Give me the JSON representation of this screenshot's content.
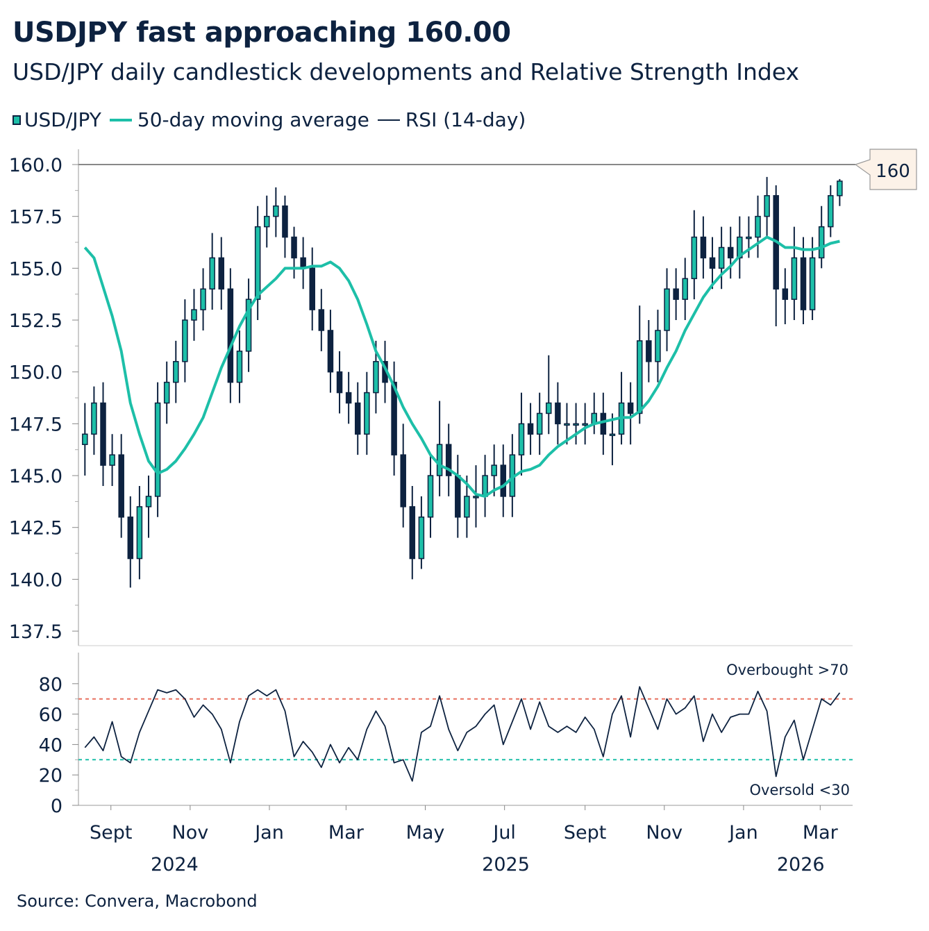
{
  "title": "USDJPY fast approaching 160.00",
  "subtitle": "USD/JPY daily candlestick developments and Relative Strength Index",
  "source": "Source: Convera, Macrobond",
  "colors": {
    "candle": "#0d2240",
    "moving_average": "#1dbfa8",
    "rsi": "#0d2240",
    "overbought": "#e8705f",
    "oversold": "#1dbfa8",
    "callout_fill": "#fcf2e8",
    "reference_line": "#888888"
  },
  "chart_data": [
    {
      "type": "candlestick",
      "legend": {
        "placement": "top-left",
        "items": [
          "USD/JPY",
          "50-day moving average",
          "RSI (14-day)"
        ]
      },
      "yticks": [
        "137.5",
        "140.0",
        "142.5",
        "145.0",
        "147.5",
        "150.0",
        "152.5",
        "155.0",
        "157.5",
        "160.0"
      ],
      "ylim": [
        137.5,
        160.8
      ],
      "grid": false,
      "reference_line": {
        "value": 160,
        "label": "160"
      },
      "candles": {
        "name": "USD/JPY",
        "start_date": "2024-08-12",
        "frequency": "weekly",
        "open": [
          146.5,
          147,
          148.5,
          145.5,
          146,
          143,
          141,
          143.5,
          144,
          148.5,
          149.5,
          150.5,
          152.5,
          153,
          154,
          155.5,
          154,
          149.5,
          151,
          153.5,
          157,
          157.5,
          158,
          156.5,
          155.5,
          155,
          153,
          152,
          150,
          149,
          148.5,
          147,
          149,
          150.5,
          149.5,
          146,
          143.5,
          141,
          143,
          145,
          146.5,
          145,
          143,
          144,
          144,
          145,
          145.5,
          144,
          146,
          147.5,
          147,
          148,
          148.5,
          147.5,
          147.5,
          147.5,
          147.5,
          148,
          147,
          147,
          148.5,
          148,
          151.5,
          150.5,
          152,
          154,
          153.5,
          154.5,
          156.5,
          155.5,
          155,
          156,
          155.5,
          156.5,
          156.5,
          157.5,
          158.5,
          154,
          153.5,
          155.5,
          153,
          155.5,
          157,
          158.5
        ],
        "high": [
          148.5,
          149.3,
          149.5,
          147,
          147,
          144,
          144.5,
          145,
          149.5,
          150.5,
          151.5,
          153.5,
          154,
          155,
          156.7,
          156.5,
          155,
          152,
          154.5,
          158,
          158.5,
          158.9,
          158.5,
          157,
          156.5,
          156,
          154,
          153,
          151,
          150,
          149.5,
          150,
          151.5,
          151.5,
          150.5,
          147.5,
          144.5,
          144,
          146,
          148.6,
          147.5,
          146,
          145,
          145.5,
          146,
          146.5,
          146.5,
          147,
          149,
          148.5,
          149,
          150.8,
          149.5,
          148.5,
          148.5,
          148.5,
          149,
          149,
          148,
          150,
          149.5,
          153.2,
          152.5,
          153,
          155,
          155,
          155.5,
          157.8,
          157.5,
          156.5,
          157,
          157,
          157.5,
          157.5,
          158.5,
          159.4,
          159,
          155,
          157,
          156.5,
          156.5,
          158,
          159,
          159.3
        ],
        "low": [
          145,
          146,
          144.5,
          144.5,
          142,
          139.6,
          140,
          142,
          143,
          147.5,
          148.5,
          149.5,
          151.5,
          152,
          153,
          153,
          148.5,
          148.5,
          150,
          152.5,
          156,
          156.5,
          155.5,
          154.5,
          154,
          152,
          151,
          149,
          148,
          147.5,
          146,
          146,
          148,
          148.5,
          145,
          142.5,
          140,
          140.5,
          142,
          144,
          144,
          142,
          142,
          142.5,
          143,
          144,
          143,
          143,
          145,
          146,
          146,
          147,
          146.5,
          146.5,
          146.5,
          146.5,
          147,
          146,
          145.5,
          146.5,
          146.5,
          147.5,
          149.5,
          149.5,
          151,
          152.5,
          152.5,
          153.5,
          154.5,
          154,
          154,
          154.5,
          154.5,
          155.5,
          155.5,
          156.5,
          152.2,
          152.3,
          152.5,
          152.3,
          152.5,
          155,
          156.5,
          158
        ],
        "close": [
          147,
          148.5,
          145.5,
          146,
          143,
          141,
          143.5,
          144,
          148.5,
          149.5,
          150.5,
          152.5,
          153,
          154,
          155.5,
          154,
          149.5,
          151,
          153.5,
          157,
          157.5,
          158,
          156.5,
          155.5,
          155,
          153,
          152,
          150,
          149,
          148.5,
          147,
          149,
          150.5,
          149.5,
          146,
          143.5,
          141,
          143,
          145,
          146.5,
          145,
          143,
          144,
          144,
          145,
          145.5,
          144,
          146,
          147.5,
          147,
          148,
          148.5,
          147.5,
          147.5,
          147.5,
          147.5,
          148,
          147,
          147,
          148.5,
          148,
          151.5,
          150.5,
          152,
          154,
          153.5,
          154.5,
          156.5,
          155.5,
          155,
          156,
          155.5,
          156.5,
          156.5,
          157.5,
          158.5,
          154,
          153.5,
          155.5,
          153,
          155.5,
          157,
          158.5,
          159.2
        ]
      },
      "moving_average": {
        "name": "50-day moving average",
        "values": [
          156,
          155.5,
          154.1,
          152.7,
          151,
          148.5,
          147,
          145.7,
          145.1,
          145.3,
          145.7,
          146.3,
          147,
          147.8,
          149,
          150.2,
          151.2,
          152.2,
          153,
          153.7,
          154.1,
          154.5,
          155,
          155,
          155,
          155.1,
          155.1,
          155.3,
          155,
          154.4,
          153.5,
          152.3,
          151,
          150.2,
          149.3,
          148.3,
          147.5,
          146.8,
          146,
          145.5,
          145.3,
          145,
          144.6,
          144.1,
          144,
          144.3,
          144.5,
          144.9,
          145.2,
          145.3,
          145.5,
          146,
          146.4,
          146.7,
          147,
          147.3,
          147.5,
          147.6,
          147.7,
          147.8,
          147.8,
          148.1,
          148.6,
          149.3,
          150.2,
          151,
          152,
          152.8,
          153.6,
          154.2,
          154.7,
          155.1,
          155.6,
          155.9,
          156.2,
          156.5,
          156.3,
          156,
          156,
          155.9,
          155.9,
          156,
          156.2,
          156.3
        ]
      }
    },
    {
      "type": "line",
      "name": "RSI (14-day)",
      "yticks": [
        "0",
        "20",
        "40",
        "60",
        "80"
      ],
      "ylim": [
        0,
        90
      ],
      "start_date": "2024-08-12",
      "frequency": "weekly",
      "values": [
        38,
        45,
        36,
        55,
        32,
        28,
        48,
        62,
        76,
        74,
        76,
        70,
        58,
        66,
        60,
        50,
        28,
        55,
        72,
        76,
        72,
        76,
        62,
        32,
        42,
        35,
        25,
        40,
        28,
        38,
        30,
        50,
        62,
        52,
        28,
        30,
        16,
        48,
        52,
        72,
        50,
        36,
        48,
        52,
        60,
        66,
        40,
        55,
        70,
        50,
        68,
        52,
        48,
        52,
        48,
        58,
        50,
        32,
        60,
        72,
        45,
        78,
        64,
        50,
        70,
        60,
        64,
        72,
        42,
        60,
        48,
        58,
        60,
        60,
        75,
        62,
        19,
        45,
        56,
        30,
        50,
        70,
        66,
        74
      ],
      "overbought": {
        "value": 70,
        "label": "Overbought >70"
      },
      "oversold": {
        "value": 30,
        "label": "Oversold <30"
      }
    }
  ],
  "xaxis": {
    "months": [
      {
        "label": "Sept",
        "date": "2024-09-01"
      },
      {
        "label": "Nov",
        "date": "2024-11-01"
      },
      {
        "label": "Jan",
        "date": "2025-01-01"
      },
      {
        "label": "Mar",
        "date": "2025-03-01"
      },
      {
        "label": "May",
        "date": "2025-05-01"
      },
      {
        "label": "Jul",
        "date": "2025-07-01"
      },
      {
        "label": "Sept",
        "date": "2025-09-01"
      },
      {
        "label": "Nov",
        "date": "2025-11-01"
      },
      {
        "label": "Jan",
        "date": "2026-01-01"
      },
      {
        "label": "Mar",
        "date": "2026-03-01"
      }
    ],
    "years": [
      {
        "label": "2024",
        "date": "2024-10-20"
      },
      {
        "label": "2025",
        "date": "2025-07-02"
      },
      {
        "label": "2026",
        "date": "2026-02-14"
      }
    ]
  }
}
